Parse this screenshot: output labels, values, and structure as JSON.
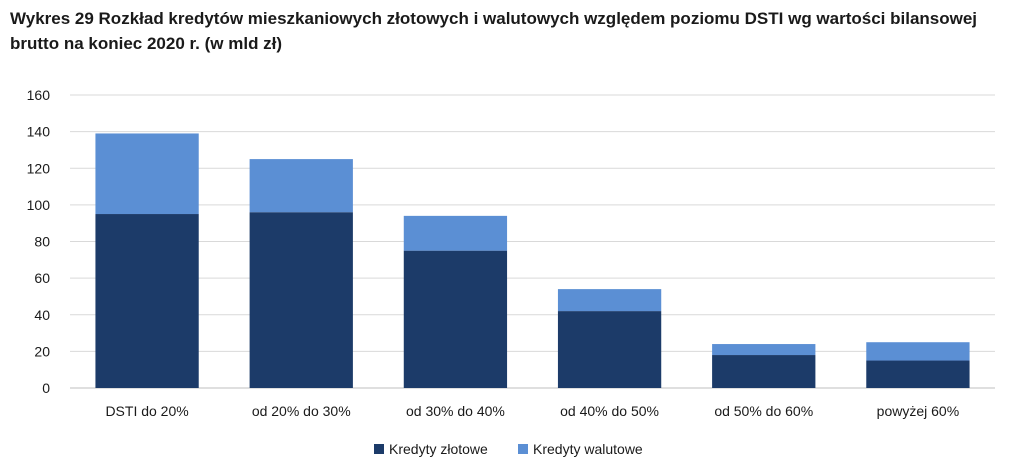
{
  "chart_data": {
    "type": "bar",
    "stacked": true,
    "title": "Wykres 29 Rozkład kredytów mieszkaniowych złotowych i walutowych względem poziomu DSTI wg wartości bilansowej brutto na koniec 2020 r. (w mld zł)",
    "xlabel": "",
    "ylabel": "",
    "ylim": [
      0,
      160
    ],
    "yticks": [
      0,
      20,
      40,
      60,
      80,
      100,
      120,
      140,
      160
    ],
    "grid": true,
    "legend_position": "bottom",
    "categories": [
      "DSTI do 20%",
      "od 20% do 30%",
      "od 30% do 40%",
      "od 40% do 50%",
      "od 50% do 60%",
      "powyżej 60%"
    ],
    "series": [
      {
        "name": "Kredyty złotowe",
        "color": "#1c3b69",
        "values": [
          95,
          96,
          75,
          42,
          18,
          15
        ]
      },
      {
        "name": "Kredyty walutowe",
        "color": "#5b8fd4",
        "values": [
          44,
          29,
          19,
          12,
          6,
          10
        ]
      }
    ]
  }
}
